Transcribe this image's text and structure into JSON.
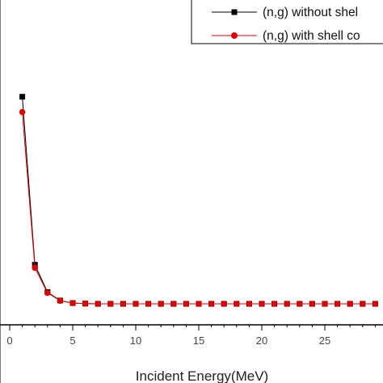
{
  "chart_data": {
    "type": "line",
    "xlabel": "Incident Energy(MeV)",
    "xlim": [
      0,
      29.5
    ],
    "x_ticks": [
      0,
      5,
      10,
      15,
      20,
      25
    ],
    "y_ticks_labeled": false,
    "grid": false,
    "legend_position": "top-right",
    "x": [
      1,
      2,
      3,
      4,
      5,
      6,
      7,
      8,
      9,
      10,
      11,
      12,
      13,
      14,
      15,
      16,
      17,
      18,
      19,
      20,
      21,
      22,
      23,
      24,
      25,
      26,
      27,
      28,
      29
    ],
    "series": [
      {
        "name": "(n,g) without shel",
        "color": "#000000",
        "marker": "square",
        "values": [
          82.0,
          16.2,
          5.5,
          2.2,
          1.2,
          1.0,
          0.9,
          0.9,
          0.9,
          0.9,
          0.9,
          0.9,
          0.9,
          0.9,
          0.9,
          0.9,
          0.9,
          0.9,
          0.9,
          0.9,
          0.9,
          0.9,
          0.9,
          0.9,
          0.9,
          0.9,
          0.9,
          0.9,
          0.9
        ]
      },
      {
        "name": "(n,g) with shell co",
        "color": "#dd0000",
        "marker": "circle",
        "values": [
          76.0,
          15.0,
          5.2,
          2.1,
          1.2,
          1.0,
          0.9,
          0.9,
          0.9,
          0.9,
          0.9,
          0.9,
          0.9,
          0.9,
          0.9,
          0.9,
          0.9,
          0.9,
          0.9,
          0.9,
          0.9,
          0.9,
          0.9,
          0.9,
          0.9,
          0.9,
          0.9,
          0.9,
          0.9
        ]
      }
    ]
  }
}
